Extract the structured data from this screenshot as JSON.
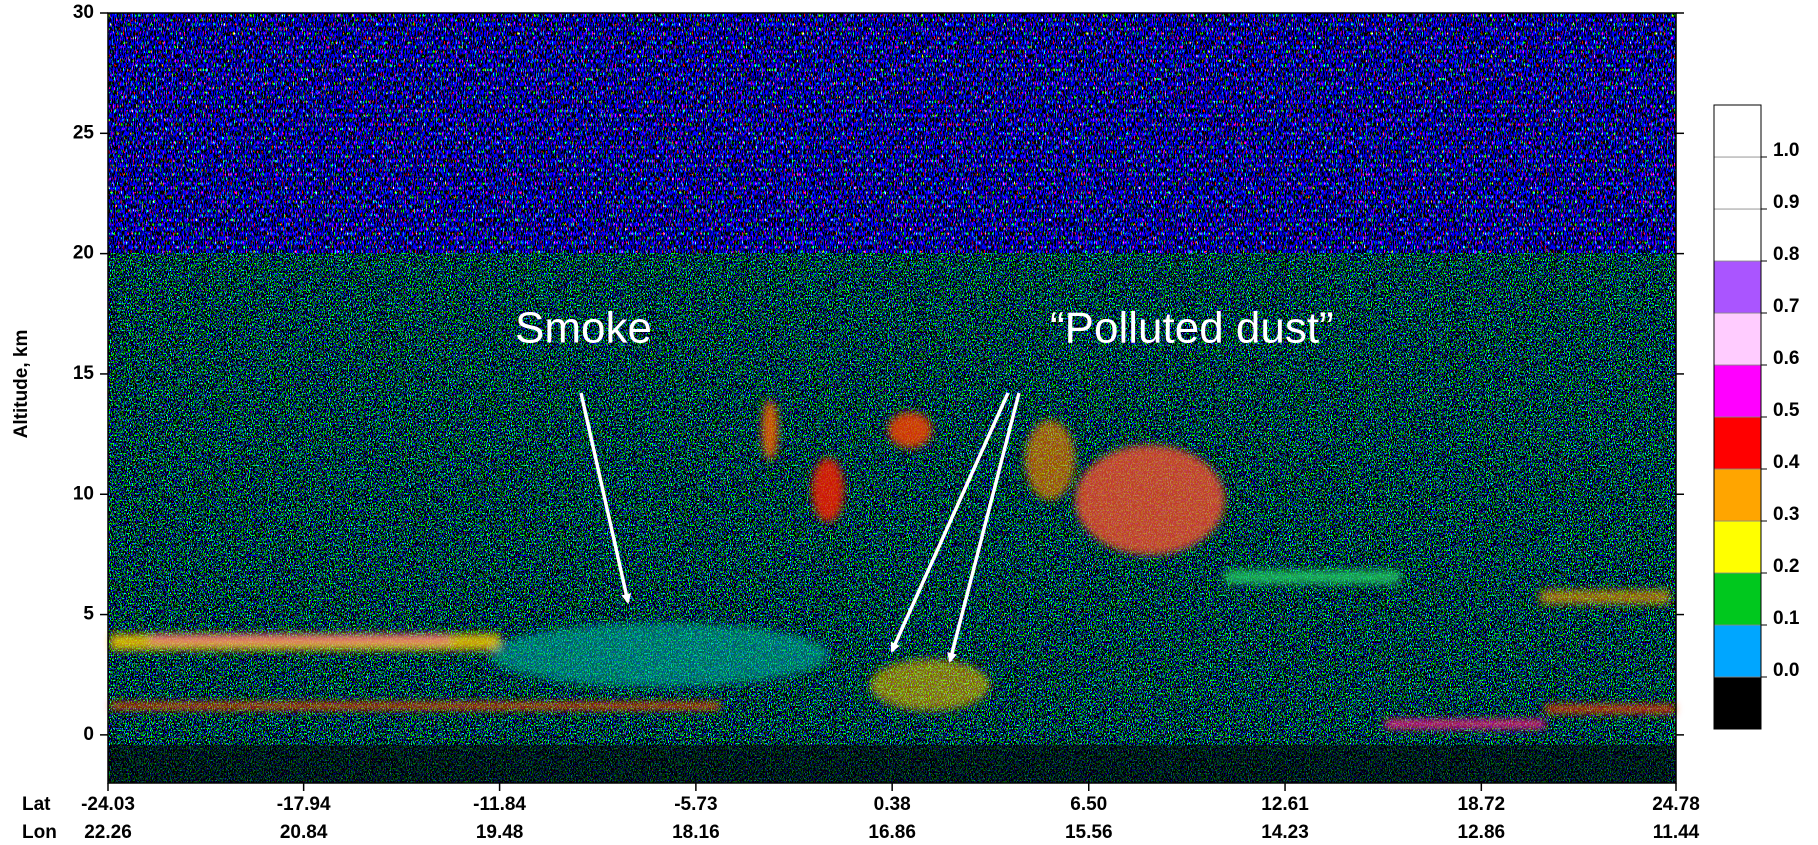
{
  "chart_data": {
    "type": "curtain",
    "ylabel": "Altitude, km",
    "ylim": [
      -2,
      30
    ],
    "yticks": [
      0,
      5,
      10,
      15,
      20,
      25,
      30
    ],
    "xlim": [
      -24.03,
      24.78
    ],
    "x_row_labels": [
      "Lat",
      "Lon"
    ],
    "xticks": [
      -24.03,
      -17.94,
      -11.84,
      -5.73,
      0.38,
      {
        "value": 6.5,
        "label": "6.50"
      },
      12.61,
      18.72,
      24.78
    ],
    "lon_labels": [
      22.26,
      20.84,
      19.48,
      18.16,
      16.86,
      15.56,
      14.23,
      12.86,
      11.44
    ],
    "annotations": [
      "Smoke",
      "“Polluted dust”"
    ],
    "colorbar": {
      "colors": [
        "#000000",
        "#00a6ff",
        "#00c81e",
        "#ffff00",
        "#ffa500",
        "#ff0000",
        "#ff00ff",
        "#ffccff",
        "#aa55ff",
        "#ffffff",
        "#ffffff",
        "#ffffff"
      ],
      "ticks": [
        {
          "value": 0,
          "label": "0.0"
        },
        0.1,
        0.2,
        0.3,
        0.4,
        0.5,
        0.6,
        0.7,
        0.8,
        0.9,
        {
          "value": 1,
          "label": "1.0"
        }
      ]
    }
  }
}
